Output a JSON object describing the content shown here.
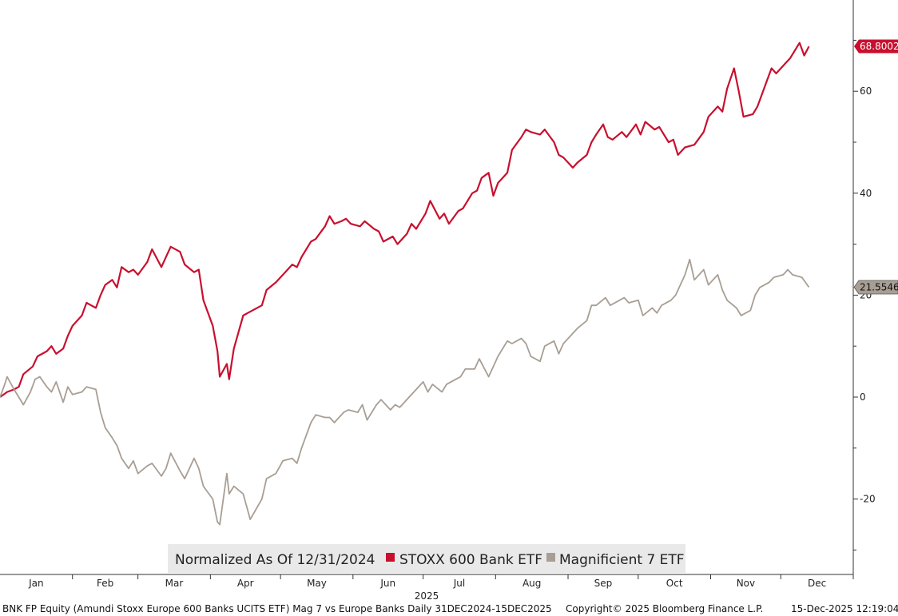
{
  "chart_data": {
    "type": "line",
    "legend": {
      "title": "Normalized As Of 12/31/2024",
      "placement": "bottom-center"
    },
    "x_axis": {
      "year_label": "2025",
      "months": [
        "Jan",
        "Feb",
        "Mar",
        "Apr",
        "May",
        "Jun",
        "Jul",
        "Aug",
        "Sep",
        "Oct",
        "Nov",
        "Dec"
      ]
    },
    "y_axis": {
      "position": "right",
      "ylim": [
        -30,
        80
      ],
      "ticks": [
        -20,
        0,
        20,
        40,
        60
      ],
      "tick_labels": [
        "-20",
        "0",
        "20",
        "40",
        "60"
      ]
    },
    "grid": false,
    "series": [
      {
        "name": "STOXX 600 Bank ETF",
        "color": "#c8102e",
        "last_label": "68.8002",
        "points": [
          [
            "2024-12-31",
            0
          ],
          [
            "2025-01-03",
            1
          ],
          [
            "2025-01-06",
            1.5
          ],
          [
            "2025-01-08",
            2
          ],
          [
            "2025-01-10",
            4.5
          ],
          [
            "2025-01-14",
            6
          ],
          [
            "2025-01-16",
            8
          ],
          [
            "2025-01-20",
            9
          ],
          [
            "2025-01-22",
            10
          ],
          [
            "2025-01-24",
            8.5
          ],
          [
            "2025-01-27",
            9.5
          ],
          [
            "2025-01-29",
            12
          ],
          [
            "2025-01-31",
            14
          ],
          [
            "2025-02-04",
            16
          ],
          [
            "2025-02-06",
            18.5
          ],
          [
            "2025-02-10",
            17.5
          ],
          [
            "2025-02-12",
            20
          ],
          [
            "2025-02-14",
            22
          ],
          [
            "2025-02-17",
            23
          ],
          [
            "2025-02-19",
            21.5
          ],
          [
            "2025-02-21",
            25.5
          ],
          [
            "2025-02-24",
            24.5
          ],
          [
            "2025-02-26",
            25
          ],
          [
            "2025-02-28",
            24
          ],
          [
            "2025-03-04",
            26.5
          ],
          [
            "2025-03-06",
            29
          ],
          [
            "2025-03-10",
            25.5
          ],
          [
            "2025-03-12",
            27.5
          ],
          [
            "2025-03-14",
            29.5
          ],
          [
            "2025-03-18",
            28.5
          ],
          [
            "2025-03-20",
            26
          ],
          [
            "2025-03-24",
            24.5
          ],
          [
            "2025-03-26",
            25
          ],
          [
            "2025-03-28",
            19
          ],
          [
            "2025-04-01",
            14
          ],
          [
            "2025-04-03",
            9
          ],
          [
            "2025-04-04",
            4
          ],
          [
            "2025-04-07",
            6.5
          ],
          [
            "2025-04-08",
            3.5
          ],
          [
            "2025-04-10",
            9.5
          ],
          [
            "2025-04-14",
            16
          ],
          [
            "2025-04-16",
            16.5
          ],
          [
            "2025-04-22",
            18
          ],
          [
            "2025-04-24",
            21
          ],
          [
            "2025-04-28",
            22.5
          ],
          [
            "2025-05-01",
            24
          ],
          [
            "2025-05-05",
            26
          ],
          [
            "2025-05-07",
            25.5
          ],
          [
            "2025-05-09",
            27.5
          ],
          [
            "2025-05-13",
            30.5
          ],
          [
            "2025-05-15",
            31
          ],
          [
            "2025-05-19",
            33.5
          ],
          [
            "2025-05-21",
            35.5
          ],
          [
            "2025-05-23",
            34
          ],
          [
            "2025-05-26",
            34.5
          ],
          [
            "2025-05-28",
            35
          ],
          [
            "2025-05-30",
            34
          ],
          [
            "2025-06-03",
            33.5
          ],
          [
            "2025-06-05",
            34.5
          ],
          [
            "2025-06-09",
            33
          ],
          [
            "2025-06-11",
            32.5
          ],
          [
            "2025-06-13",
            30.5
          ],
          [
            "2025-06-17",
            31.5
          ],
          [
            "2025-06-19",
            30
          ],
          [
            "2025-06-23",
            32
          ],
          [
            "2025-06-25",
            34
          ],
          [
            "2025-06-27",
            33
          ],
          [
            "2025-07-01",
            36
          ],
          [
            "2025-07-03",
            38.5
          ],
          [
            "2025-07-07",
            35
          ],
          [
            "2025-07-09",
            36
          ],
          [
            "2025-07-11",
            34
          ],
          [
            "2025-07-15",
            36.5
          ],
          [
            "2025-07-17",
            37
          ],
          [
            "2025-07-21",
            40
          ],
          [
            "2025-07-23",
            40.5
          ],
          [
            "2025-07-25",
            43
          ],
          [
            "2025-07-28",
            44
          ],
          [
            "2025-07-30",
            39.5
          ],
          [
            "2025-08-01",
            42
          ],
          [
            "2025-08-05",
            44
          ],
          [
            "2025-08-07",
            48.5
          ],
          [
            "2025-08-11",
            51
          ],
          [
            "2025-08-13",
            52.5
          ],
          [
            "2025-08-15",
            52
          ],
          [
            "2025-08-19",
            51.5
          ],
          [
            "2025-08-21",
            52.5
          ],
          [
            "2025-08-25",
            50
          ],
          [
            "2025-08-27",
            47.5
          ],
          [
            "2025-08-29",
            47
          ],
          [
            "2025-09-02",
            45
          ],
          [
            "2025-09-04",
            46
          ],
          [
            "2025-09-08",
            47.5
          ],
          [
            "2025-09-10",
            50
          ],
          [
            "2025-09-12",
            51.5
          ],
          [
            "2025-09-15",
            53.5
          ],
          [
            "2025-09-17",
            51
          ],
          [
            "2025-09-19",
            50.5
          ],
          [
            "2025-09-23",
            52
          ],
          [
            "2025-09-25",
            51
          ],
          [
            "2025-09-29",
            53.5
          ],
          [
            "2025-10-01",
            51.5
          ],
          [
            "2025-10-03",
            54
          ],
          [
            "2025-10-07",
            52.5
          ],
          [
            "2025-10-09",
            53
          ],
          [
            "2025-10-13",
            50
          ],
          [
            "2025-10-15",
            50.5
          ],
          [
            "2025-10-17",
            47.5
          ],
          [
            "2025-10-20",
            49
          ],
          [
            "2025-10-24",
            49.5
          ],
          [
            "2025-10-28",
            52
          ],
          [
            "2025-10-30",
            55
          ],
          [
            "2025-11-03",
            57
          ],
          [
            "2025-11-05",
            56
          ],
          [
            "2025-11-07",
            60.5
          ],
          [
            "2025-11-10",
            64.5
          ],
          [
            "2025-11-12",
            60
          ],
          [
            "2025-11-14",
            55
          ],
          [
            "2025-11-18",
            55.5
          ],
          [
            "2025-11-20",
            57
          ],
          [
            "2025-11-24",
            62
          ],
          [
            "2025-11-26",
            64.5
          ],
          [
            "2025-11-28",
            63.5
          ],
          [
            "2025-12-02",
            65.5
          ],
          [
            "2025-12-04",
            66.5
          ],
          [
            "2025-12-08",
            69.5
          ],
          [
            "2025-12-10",
            67
          ],
          [
            "2025-12-12",
            68.8
          ]
        ]
      },
      {
        "name": "Magnificient 7 ETF",
        "color": "#a89e94",
        "last_label": "21.5546",
        "points": [
          [
            "2024-12-31",
            0
          ],
          [
            "2025-01-02",
            2.5
          ],
          [
            "2025-01-03",
            4
          ],
          [
            "2025-01-06",
            1.5
          ],
          [
            "2025-01-08",
            0
          ],
          [
            "2025-01-10",
            -1.5
          ],
          [
            "2025-01-13",
            1
          ],
          [
            "2025-01-15",
            3.5
          ],
          [
            "2025-01-17",
            4
          ],
          [
            "2025-01-20",
            2
          ],
          [
            "2025-01-22",
            1
          ],
          [
            "2025-01-24",
            3
          ],
          [
            "2025-01-27",
            -1
          ],
          [
            "2025-01-29",
            2
          ],
          [
            "2025-01-31",
            0.5
          ],
          [
            "2025-02-04",
            1
          ],
          [
            "2025-02-06",
            2
          ],
          [
            "2025-02-10",
            1.5
          ],
          [
            "2025-02-12",
            -3
          ],
          [
            "2025-02-14",
            -6
          ],
          [
            "2025-02-17",
            -8
          ],
          [
            "2025-02-19",
            -9.5
          ],
          [
            "2025-02-21",
            -12
          ],
          [
            "2025-02-24",
            -14
          ],
          [
            "2025-02-26",
            -12.5
          ],
          [
            "2025-02-28",
            -15
          ],
          [
            "2025-03-04",
            -13.5
          ],
          [
            "2025-03-06",
            -13
          ],
          [
            "2025-03-10",
            -15.5
          ],
          [
            "2025-03-12",
            -14
          ],
          [
            "2025-03-14",
            -11
          ],
          [
            "2025-03-18",
            -14.5
          ],
          [
            "2025-03-20",
            -16
          ],
          [
            "2025-03-24",
            -12
          ],
          [
            "2025-03-26",
            -14
          ],
          [
            "2025-03-28",
            -17.5
          ],
          [
            "2025-04-01",
            -20
          ],
          [
            "2025-04-03",
            -24.5
          ],
          [
            "2025-04-04",
            -25
          ],
          [
            "2025-04-07",
            -15
          ],
          [
            "2025-04-08",
            -19
          ],
          [
            "2025-04-10",
            -17.5
          ],
          [
            "2025-04-14",
            -19
          ],
          [
            "2025-04-17",
            -24
          ],
          [
            "2025-04-22",
            -20
          ],
          [
            "2025-04-24",
            -16
          ],
          [
            "2025-04-28",
            -15
          ],
          [
            "2025-05-01",
            -12.5
          ],
          [
            "2025-05-05",
            -12
          ],
          [
            "2025-05-07",
            -13
          ],
          [
            "2025-05-09",
            -10
          ],
          [
            "2025-05-13",
            -5
          ],
          [
            "2025-05-15",
            -3.5
          ],
          [
            "2025-05-19",
            -4
          ],
          [
            "2025-05-21",
            -4
          ],
          [
            "2025-05-23",
            -5
          ],
          [
            "2025-05-27",
            -3
          ],
          [
            "2025-05-29",
            -2.5
          ],
          [
            "2025-06-02",
            -3
          ],
          [
            "2025-06-04",
            -1.5
          ],
          [
            "2025-06-06",
            -4.5
          ],
          [
            "2025-06-10",
            -1.5
          ],
          [
            "2025-06-12",
            -0.5
          ],
          [
            "2025-06-16",
            -2.5
          ],
          [
            "2025-06-18",
            -1.5
          ],
          [
            "2025-06-20",
            -2
          ],
          [
            "2025-06-24",
            0
          ],
          [
            "2025-06-26",
            1
          ],
          [
            "2025-06-30",
            3
          ],
          [
            "2025-07-02",
            1
          ],
          [
            "2025-07-04",
            2.5
          ],
          [
            "2025-07-08",
            1
          ],
          [
            "2025-07-10",
            2.5
          ],
          [
            "2025-07-14",
            3.5
          ],
          [
            "2025-07-16",
            4
          ],
          [
            "2025-07-18",
            5.5
          ],
          [
            "2025-07-22",
            5.5
          ],
          [
            "2025-07-24",
            7.5
          ],
          [
            "2025-07-28",
            4
          ],
          [
            "2025-07-30",
            6
          ],
          [
            "2025-08-01",
            8
          ],
          [
            "2025-08-05",
            11
          ],
          [
            "2025-08-07",
            10.5
          ],
          [
            "2025-08-11",
            11.5
          ],
          [
            "2025-08-13",
            10.5
          ],
          [
            "2025-08-15",
            8
          ],
          [
            "2025-08-19",
            7
          ],
          [
            "2025-08-21",
            10
          ],
          [
            "2025-08-25",
            11
          ],
          [
            "2025-08-27",
            8.5
          ],
          [
            "2025-08-29",
            10.5
          ],
          [
            "2025-09-02",
            12.5
          ],
          [
            "2025-09-04",
            13.5
          ],
          [
            "2025-09-08",
            15
          ],
          [
            "2025-09-10",
            18
          ],
          [
            "2025-09-12",
            18
          ],
          [
            "2025-09-16",
            19.5
          ],
          [
            "2025-09-18",
            18
          ],
          [
            "2025-09-22",
            19
          ],
          [
            "2025-09-24",
            19.5
          ],
          [
            "2025-09-26",
            18.5
          ],
          [
            "2025-09-30",
            19
          ],
          [
            "2025-10-02",
            16
          ],
          [
            "2025-10-06",
            17.5
          ],
          [
            "2025-10-08",
            16.5
          ],
          [
            "2025-10-10",
            18
          ],
          [
            "2025-10-14",
            19
          ],
          [
            "2025-10-16",
            20
          ],
          [
            "2025-10-20",
            24
          ],
          [
            "2025-10-22",
            27
          ],
          [
            "2025-10-24",
            23
          ],
          [
            "2025-10-28",
            25
          ],
          [
            "2025-10-30",
            22
          ],
          [
            "2025-11-03",
            24
          ],
          [
            "2025-11-05",
            21
          ],
          [
            "2025-11-07",
            19
          ],
          [
            "2025-11-11",
            17.5
          ],
          [
            "2025-11-13",
            16
          ],
          [
            "2025-11-17",
            17
          ],
          [
            "2025-11-19",
            20
          ],
          [
            "2025-11-21",
            21.5
          ],
          [
            "2025-11-25",
            22.5
          ],
          [
            "2025-11-27",
            23.5
          ],
          [
            "2025-12-01",
            24
          ],
          [
            "2025-12-03",
            25
          ],
          [
            "2025-12-05",
            24
          ],
          [
            "2025-12-09",
            23.5
          ],
          [
            "2025-12-12",
            21.55
          ]
        ]
      }
    ]
  },
  "footer": {
    "source": "BNK FP Equity (Amundi Stoxx Europe 600 Banks UCITS ETF) Mag 7 vs Europe Banks Daily 31DEC2024-15DEC2025",
    "copyright": "Copyright© 2025 Bloomberg Finance L.P.",
    "timestamp": "15-Dec-2025 12:19:04"
  }
}
